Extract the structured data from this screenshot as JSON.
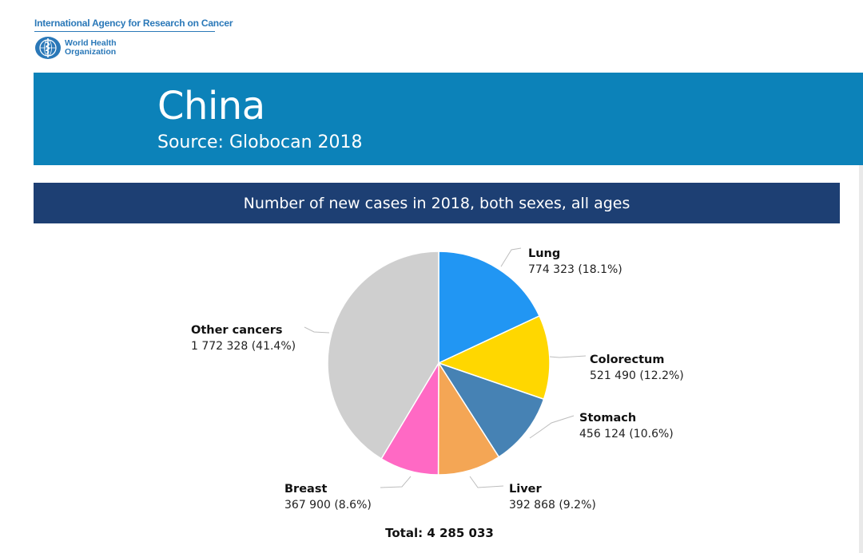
{
  "header": {
    "agency": "International Agency for Research on Cancer",
    "who_line1": "World Health",
    "who_line2": "Organization"
  },
  "banner": {
    "title": "China",
    "source": "Source: Globocan 2018"
  },
  "chart_title": "Number of new cases in 2018, both sexes, all ages",
  "chart_data": {
    "type": "pie",
    "title": "Number of new cases in 2018, both sexes, all ages",
    "total_label": "Total: 4 285 033",
    "total": 4285033,
    "slices": [
      {
        "name": "Lung",
        "value": 774323,
        "value_label": "774 323 (18.1%)",
        "percent": 18.1,
        "color": "#2196f3"
      },
      {
        "name": "Colorectum",
        "value": 521490,
        "value_label": "521 490 (12.2%)",
        "percent": 12.2,
        "color": "#ffd700"
      },
      {
        "name": "Stomach",
        "value": 456124,
        "value_label": "456 124 (10.6%)",
        "percent": 10.6,
        "color": "#4682b4"
      },
      {
        "name": "Liver",
        "value": 392868,
        "value_label": "392 868 (9.2%)",
        "percent": 9.2,
        "color": "#f4a655"
      },
      {
        "name": "Breast",
        "value": 367900,
        "value_label": "367 900 (8.6%)",
        "percent": 8.6,
        "color": "#ff69c4"
      },
      {
        "name": "Other cancers",
        "value": 1772328,
        "value_label": "1 772 328 (41.4%)",
        "percent": 41.4,
        "color": "#cfcfcf"
      }
    ],
    "start_angle": "12 o'clock",
    "direction": "clockwise"
  }
}
